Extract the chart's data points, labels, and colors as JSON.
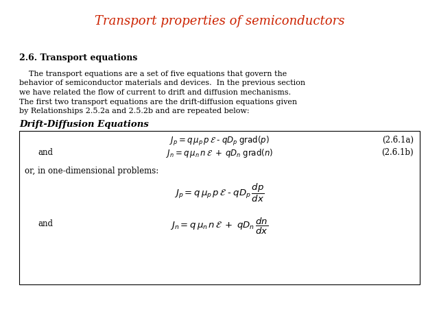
{
  "title": "Transport properties of semiconductors",
  "title_color": "#CC2200",
  "title_fontsize": 13,
  "bg_color": "#FFFFFF",
  "section_heading": "2.6. Transport equations",
  "para_line1": "    The transport equations are a set of five equations that govern the",
  "para_line2": "behavior of semiconductor materials and devices.  In the previous section",
  "para_line3": "we have related the flow of current to drift and diffusion mechanisms.",
  "para_line4": "The first two transport equations are the drift-diffusion equations given",
  "para_line5": "by Relationships 2.5.2a and 2.5.2b and are repeated below:",
  "box_heading": "Drift-Diffusion Equations",
  "eq1a_center": "$J_p = q\\,\\mu_p\\,p\\,\\mathcal{E}\\;\\text{-}\\;qD_p\\;\\mathrm{grad}(p)$",
  "eq1b_center": "$J_n = q\\,\\mu_n\\,n\\,\\mathcal{E}\\;+\\;qD_n\\;\\mathrm{grad}(n)$",
  "ref1a": "(2.6.1a)",
  "ref1b": "(2.6.1b)",
  "and_label": "and",
  "or_text": "or, in one-dimensional problems:",
  "eq2a": "$J_p = q\\,\\mu_p\\,p\\,\\mathcal{E}\\;\\text{-}\\;qD_p\\,\\dfrac{dp}{dx}$",
  "eq2b": "$J_n = q\\,\\mu_n\\,n\\,\\mathcal{E}\\;+\\;qD_n\\,\\dfrac{dn}{dx}$",
  "text_fontsize": 8.0,
  "eq_fontsize": 8.5,
  "eq2_fontsize": 9.5
}
